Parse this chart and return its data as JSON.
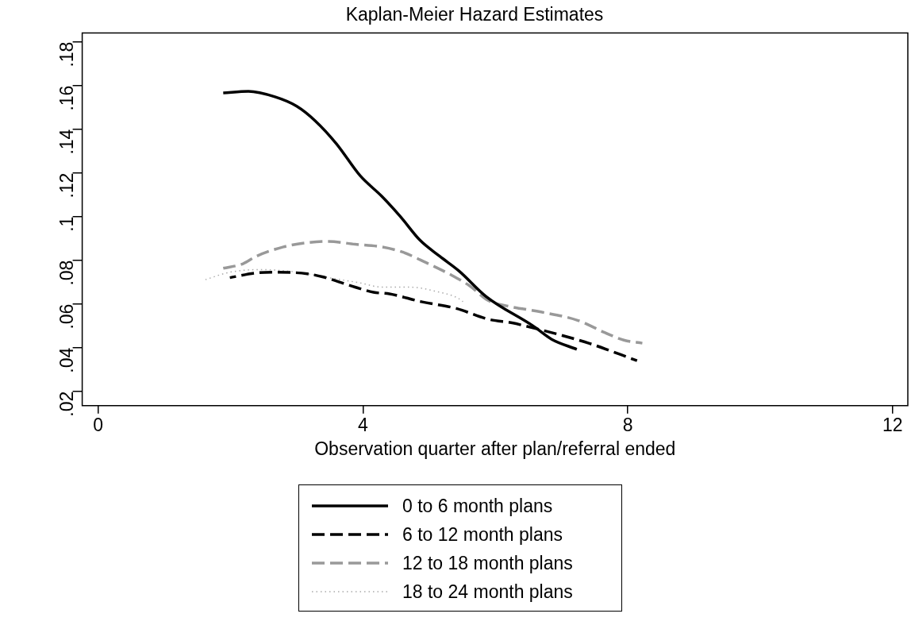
{
  "chart_data": {
    "type": "line",
    "title": "Kaplan-Meier Hazard Estimates",
    "xlabel": "Observation quarter after plan/referral ended",
    "xlim": [
      -0.24,
      12.23
    ],
    "xticks": [
      0,
      4,
      8,
      12
    ],
    "ylim": [
      0.0134,
      0.184
    ],
    "yticks": [
      {
        "value": 0.02,
        "label": ".02"
      },
      {
        "value": 0.04,
        "label": ".04"
      },
      {
        "value": 0.06,
        "label": ".06"
      },
      {
        "value": 0.08,
        "label": ".08"
      },
      {
        "value": 0.1,
        "label": ".1"
      },
      {
        "value": 0.12,
        "label": ".12"
      },
      {
        "value": 0.14,
        "label": ".14"
      },
      {
        "value": 0.16,
        "label": ".16"
      },
      {
        "value": 0.18,
        "label": ".18"
      }
    ],
    "grid": false,
    "legend": "bottom",
    "marker": "none",
    "series": [
      {
        "name": "0 to 6 month plans",
        "color": "#000000",
        "line_style": "solid",
        "x": [
          1.89,
          2.27,
          2.67,
          3.0,
          3.28,
          3.6,
          3.96,
          4.28,
          4.56,
          4.86,
          5.16,
          5.45,
          5.86,
          6.57,
          6.85,
          7.23
        ],
        "values": [
          0.1566,
          0.1573,
          0.1548,
          0.1505,
          0.1438,
          0.1333,
          0.1186,
          0.1094,
          0.1002,
          0.0892,
          0.0818,
          0.0751,
          0.0634,
          0.0499,
          0.0438,
          0.0392
        ]
      },
      {
        "name": "6 to 12 month plans",
        "color": "#000000",
        "line_style": "dashed",
        "x": [
          1.99,
          2.39,
          2.67,
          3.16,
          3.4,
          3.88,
          4.16,
          4.4,
          4.88,
          5.41,
          5.89,
          6.27,
          6.41,
          6.93,
          7.41,
          7.9,
          8.14
        ],
        "values": [
          0.072,
          0.0742,
          0.0745,
          0.0738,
          0.0723,
          0.0677,
          0.0653,
          0.0646,
          0.061,
          0.0579,
          0.053,
          0.0512,
          0.0502,
          0.0462,
          0.042,
          0.0367,
          0.034
        ]
      },
      {
        "name": "12 to 18 month plans",
        "color": "#999999",
        "line_style": "dashed",
        "x": [
          1.89,
          2.19,
          2.39,
          2.8,
          3.16,
          3.48,
          3.88,
          4.28,
          4.6,
          4.96,
          5.33,
          5.61,
          5.89,
          6.17,
          6.69,
          7.25,
          7.65,
          7.94,
          8.22
        ],
        "values": [
          0.0763,
          0.0784,
          0.0818,
          0.0861,
          0.088,
          0.0886,
          0.0873,
          0.0861,
          0.0837,
          0.0788,
          0.0733,
          0.0683,
          0.0616,
          0.0591,
          0.0563,
          0.0524,
          0.0469,
          0.0434,
          0.042
        ]
      },
      {
        "name": "18 to 24 month plans",
        "color": "#aaaaaa",
        "line_style": "dotted",
        "x": [
          1.59,
          1.99,
          2.47,
          3.08,
          3.48,
          3.96,
          4.28,
          4.68,
          5.08,
          5.49,
          5.51
        ],
        "values": [
          0.0708,
          0.0745,
          0.0757,
          0.0742,
          0.072,
          0.0696,
          0.0677,
          0.0677,
          0.0659,
          0.0616,
          0.061
        ]
      }
    ]
  }
}
